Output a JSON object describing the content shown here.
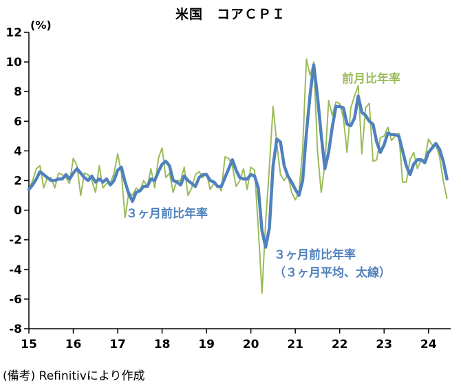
{
  "chart": {
    "title": "米国　コアＣＰＩ",
    "y_unit": "(%)",
    "annotations": {
      "monthly": "前月比年率",
      "three_mo": "３ヶ月前比年率",
      "three_mo_avg_line1": "３ヶ月前比年率",
      "three_mo_avg_line2": "（３ヶ月平均、太線）"
    }
  },
  "footer": {
    "note": "(備考) Refinitivにより作成"
  },
  "chart_data": {
    "type": "line",
    "title": "米国　コアＣＰＩ",
    "ylabel": "(%)",
    "ylim": [
      -8,
      12
    ],
    "ytick_step": 2,
    "grid": false,
    "legend_position": "inline-annotations",
    "x_unit": "month",
    "x_start": "2015-01",
    "x_end": "2024-06",
    "x_tick_labels": [
      "15",
      "16",
      "17",
      "18",
      "19",
      "20",
      "21",
      "22",
      "23",
      "24"
    ],
    "months_per_tick": 12,
    "axis_color": "#000000",
    "series": [
      {
        "name": "前月比年率",
        "color": "#9BBB59",
        "line_width": 2,
        "values": [
          1.4,
          2.0,
          2.8,
          3.0,
          1.5,
          2.2,
          2.2,
          1.5,
          2.5,
          2.4,
          2.2,
          1.8,
          3.5,
          3.0,
          1.0,
          2.5,
          2.4,
          2.0,
          1.2,
          3.0,
          1.5,
          1.8,
          1.8,
          2.5,
          3.8,
          2.5,
          -0.5,
          1.2,
          1.0,
          1.5,
          1.3,
          2.0,
          1.6,
          2.8,
          1.5,
          3.5,
          4.2,
          2.2,
          2.5,
          1.2,
          2.0,
          2.0,
          2.9,
          1.0,
          1.5,
          2.4,
          2.6,
          2.2,
          2.5,
          1.4,
          1.8,
          1.7,
          1.3,
          3.6,
          3.5,
          3.0,
          1.6,
          2.0,
          2.8,
          1.4,
          2.9,
          2.7,
          -1.2,
          -5.6,
          -0.8,
          2.9,
          7.0,
          4.5,
          2.4,
          2.0,
          2.4,
          1.2,
          0.7,
          1.2,
          4.1,
          10.2,
          9.1,
          10.0,
          4.0,
          1.2,
          3.1,
          7.4,
          6.4,
          7.3,
          7.2,
          6.2,
          3.9,
          6.9,
          7.7,
          8.4,
          3.8,
          6.9,
          7.2,
          3.3,
          3.4,
          4.9,
          5.0,
          5.6,
          4.7,
          5.0,
          5.2,
          1.9,
          1.9,
          3.4,
          3.9,
          2.8,
          3.4,
          3.4,
          4.8,
          4.4,
          4.4,
          3.6,
          2.0,
          0.8
        ]
      },
      {
        "name": "３ヶ月前比年率（３ヶ月平均、太線）",
        "color": "#4F81BD",
        "line_width": 4.5,
        "values": [
          1.4,
          1.7,
          2.1,
          2.6,
          2.4,
          2.2,
          2.0,
          2.0,
          2.1,
          2.1,
          2.4,
          2.1,
          2.5,
          2.8,
          2.5,
          2.2,
          2.0,
          2.3,
          1.9,
          2.1,
          1.9,
          2.1,
          1.7,
          2.0,
          2.7,
          2.9,
          1.9,
          1.1,
          0.6,
          1.2,
          1.3,
          1.6,
          1.6,
          2.1,
          2.0,
          2.6,
          3.1,
          3.3,
          3.0,
          2.0,
          1.9,
          1.7,
          2.3,
          2.0,
          1.8,
          1.6,
          2.2,
          2.4,
          2.4,
          2.0,
          1.9,
          1.6,
          1.6,
          2.2,
          2.8,
          3.4,
          2.7,
          2.2,
          2.1,
          2.1,
          2.4,
          2.3,
          1.5,
          -1.4,
          -2.5,
          -1.2,
          3.0,
          4.8,
          4.6,
          3.0,
          2.3,
          1.9,
          1.4,
          1.0,
          2.0,
          5.2,
          7.8,
          9.8,
          7.7,
          5.1,
          2.8,
          3.9,
          5.6,
          7.0,
          7.0,
          6.9,
          5.8,
          5.7,
          6.2,
          7.7,
          6.6,
          6.4,
          6.0,
          5.8,
          4.6,
          3.9,
          4.4,
          5.2,
          5.1,
          5.1,
          5.0,
          4.0,
          3.0,
          2.4,
          3.1,
          3.4,
          3.4,
          3.2,
          3.9,
          4.2,
          4.5,
          4.1,
          3.3,
          2.1
        ]
      }
    ]
  }
}
